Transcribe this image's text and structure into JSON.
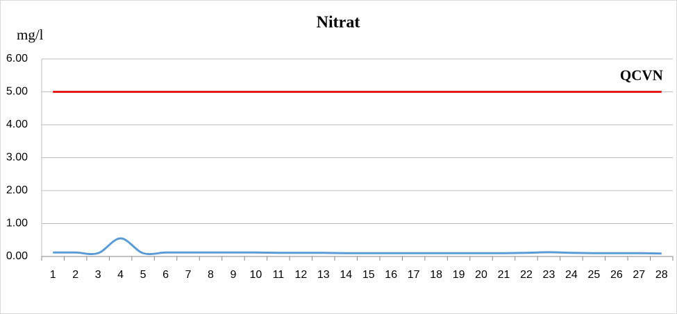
{
  "chart_data": {
    "type": "line",
    "title": "Nitrat",
    "y_label": "mg/l",
    "categories": [
      1,
      2,
      3,
      4,
      5,
      6,
      7,
      8,
      9,
      10,
      11,
      12,
      13,
      14,
      15,
      16,
      17,
      18,
      19,
      20,
      21,
      22,
      23,
      24,
      25,
      26,
      27,
      28
    ],
    "series": [
      {
        "color": "#5b9bd5",
        "values": [
          0.12,
          0.12,
          0.1,
          0.55,
          0.1,
          0.12,
          0.12,
          0.12,
          0.12,
          0.12,
          0.11,
          0.11,
          0.11,
          0.1,
          0.1,
          0.1,
          0.1,
          0.1,
          0.1,
          0.1,
          0.1,
          0.11,
          0.13,
          0.11,
          0.1,
          0.1,
          0.1,
          0.09
        ],
        "smooth": true
      },
      {
        "name": "QCVN",
        "color": "#e31a1c",
        "values": [
          5,
          5,
          5,
          5,
          5,
          5,
          5,
          5,
          5,
          5,
          5,
          5,
          5,
          5,
          5,
          5,
          5,
          5,
          5,
          5,
          5,
          5,
          5,
          5,
          5,
          5,
          5,
          5
        ],
        "smooth": false
      }
    ],
    "ylim": [
      0,
      6
    ],
    "yticks": [
      {
        "value": 0,
        "label": "0.00"
      },
      {
        "value": 1,
        "label": "1.00"
      },
      {
        "value": 2,
        "label": "2.00"
      },
      {
        "value": 3,
        "label": "3.00"
      },
      {
        "value": 4,
        "label": "4.00"
      },
      {
        "value": 5,
        "label": "5.00"
      },
      {
        "value": 6,
        "label": "6.00"
      }
    ],
    "grid": true
  }
}
